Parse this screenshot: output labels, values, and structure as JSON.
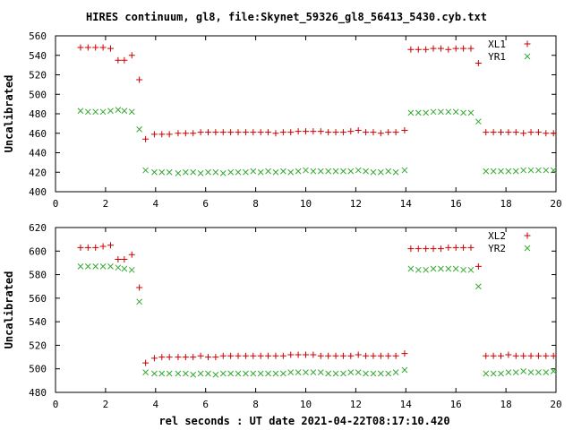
{
  "title": "HIRES continuum, gl8, file:Skynet_59326_gl8_56413_5430.cyb.txt",
  "xlabel": "rel seconds : UT date 2021-04-22T08:17:10.420",
  "colors": {
    "red": "#cc0000",
    "green": "#33aa33",
    "axis": "#000000"
  },
  "chart_data": [
    {
      "type": "scatter",
      "ylabel": "Uncalibrated",
      "xlim": [
        0,
        20
      ],
      "ylim": [
        400,
        560
      ],
      "xticks": [
        0,
        2,
        4,
        6,
        8,
        10,
        12,
        14,
        16,
        18,
        20
      ],
      "yticks": [
        400,
        420,
        440,
        460,
        480,
        500,
        520,
        540,
        560
      ],
      "legend_position": "top-right",
      "series": [
        {
          "name": "XL1",
          "marker": "+",
          "color": "#cc0000",
          "points": [
            [
              1.0,
              548
            ],
            [
              1.3,
              548
            ],
            [
              1.6,
              548
            ],
            [
              1.9,
              548
            ],
            [
              2.2,
              547
            ],
            [
              2.5,
              535
            ],
            [
              2.75,
              535
            ],
            [
              3.05,
              540
            ],
            [
              3.35,
              515
            ],
            [
              3.6,
              454
            ],
            [
              3.95,
              459
            ],
            [
              4.25,
              459
            ],
            [
              4.55,
              459
            ],
            [
              4.9,
              460
            ],
            [
              5.2,
              460
            ],
            [
              5.5,
              460
            ],
            [
              5.8,
              461
            ],
            [
              6.1,
              461
            ],
            [
              6.4,
              461
            ],
            [
              6.7,
              461
            ],
            [
              7.0,
              461
            ],
            [
              7.3,
              461
            ],
            [
              7.6,
              461
            ],
            [
              7.9,
              461
            ],
            [
              8.2,
              461
            ],
            [
              8.5,
              461
            ],
            [
              8.8,
              460
            ],
            [
              9.1,
              461
            ],
            [
              9.4,
              461
            ],
            [
              9.7,
              462
            ],
            [
              10.0,
              462
            ],
            [
              10.3,
              462
            ],
            [
              10.6,
              462
            ],
            [
              10.9,
              461
            ],
            [
              11.2,
              461
            ],
            [
              11.5,
              461
            ],
            [
              11.8,
              462
            ],
            [
              12.1,
              463
            ],
            [
              12.4,
              461
            ],
            [
              12.7,
              461
            ],
            [
              13.0,
              460
            ],
            [
              13.3,
              461
            ],
            [
              13.6,
              461
            ],
            [
              13.95,
              463
            ],
            [
              14.2,
              546
            ],
            [
              14.5,
              546
            ],
            [
              14.8,
              546
            ],
            [
              15.1,
              547
            ],
            [
              15.4,
              547
            ],
            [
              15.7,
              546
            ],
            [
              16.0,
              547
            ],
            [
              16.3,
              547
            ],
            [
              16.6,
              547
            ],
            [
              16.9,
              532
            ],
            [
              17.2,
              461
            ],
            [
              17.5,
              461
            ],
            [
              17.8,
              461
            ],
            [
              18.1,
              461
            ],
            [
              18.4,
              461
            ],
            [
              18.7,
              460
            ],
            [
              19.0,
              461
            ],
            [
              19.3,
              461
            ],
            [
              19.6,
              460
            ],
            [
              19.9,
              460
            ]
          ]
        },
        {
          "name": "YR1",
          "marker": "x",
          "color": "#33aa33",
          "points": [
            [
              1.0,
              483
            ],
            [
              1.3,
              482
            ],
            [
              1.6,
              482
            ],
            [
              1.9,
              482
            ],
            [
              2.2,
              483
            ],
            [
              2.5,
              484
            ],
            [
              2.75,
              483
            ],
            [
              3.05,
              482
            ],
            [
              3.35,
              464
            ],
            [
              3.6,
              422
            ],
            [
              3.95,
              420
            ],
            [
              4.25,
              420
            ],
            [
              4.55,
              420
            ],
            [
              4.9,
              419
            ],
            [
              5.2,
              420
            ],
            [
              5.5,
              420
            ],
            [
              5.8,
              419
            ],
            [
              6.1,
              420
            ],
            [
              6.4,
              420
            ],
            [
              6.7,
              419
            ],
            [
              7.0,
              420
            ],
            [
              7.3,
              420
            ],
            [
              7.6,
              420
            ],
            [
              7.9,
              421
            ],
            [
              8.2,
              420
            ],
            [
              8.5,
              421
            ],
            [
              8.8,
              420
            ],
            [
              9.1,
              421
            ],
            [
              9.4,
              420
            ],
            [
              9.7,
              421
            ],
            [
              10.0,
              422
            ],
            [
              10.3,
              421
            ],
            [
              10.6,
              421
            ],
            [
              10.9,
              421
            ],
            [
              11.2,
              421
            ],
            [
              11.5,
              421
            ],
            [
              11.8,
              421
            ],
            [
              12.1,
              422
            ],
            [
              12.4,
              421
            ],
            [
              12.7,
              420
            ],
            [
              13.0,
              420
            ],
            [
              13.3,
              421
            ],
            [
              13.6,
              420
            ],
            [
              13.95,
              422
            ],
            [
              14.2,
              481
            ],
            [
              14.5,
              481
            ],
            [
              14.8,
              481
            ],
            [
              15.1,
              482
            ],
            [
              15.4,
              482
            ],
            [
              15.7,
              482
            ],
            [
              16.0,
              482
            ],
            [
              16.3,
              481
            ],
            [
              16.6,
              481
            ],
            [
              16.9,
              472
            ],
            [
              17.2,
              421
            ],
            [
              17.5,
              421
            ],
            [
              17.8,
              421
            ],
            [
              18.1,
              421
            ],
            [
              18.4,
              421
            ],
            [
              18.7,
              422
            ],
            [
              19.0,
              422
            ],
            [
              19.3,
              422
            ],
            [
              19.6,
              422
            ],
            [
              19.9,
              422
            ]
          ]
        }
      ]
    },
    {
      "type": "scatter",
      "ylabel": "Uncalibrated",
      "xlim": [
        0,
        20
      ],
      "ylim": [
        480,
        620
      ],
      "xticks": [
        0,
        2,
        4,
        6,
        8,
        10,
        12,
        14,
        16,
        18,
        20
      ],
      "yticks": [
        480,
        500,
        520,
        540,
        560,
        580,
        600,
        620
      ],
      "legend_position": "top-right",
      "series": [
        {
          "name": "XL2",
          "marker": "+",
          "color": "#cc0000",
          "points": [
            [
              1.0,
              603
            ],
            [
              1.3,
              603
            ],
            [
              1.6,
              603
            ],
            [
              1.9,
              604
            ],
            [
              2.2,
              605
            ],
            [
              2.5,
              593
            ],
            [
              2.75,
              593
            ],
            [
              3.05,
              597
            ],
            [
              3.35,
              569
            ],
            [
              3.6,
              505
            ],
            [
              3.95,
              509
            ],
            [
              4.25,
              510
            ],
            [
              4.55,
              510
            ],
            [
              4.9,
              510
            ],
            [
              5.2,
              510
            ],
            [
              5.5,
              510
            ],
            [
              5.8,
              511
            ],
            [
              6.1,
              510
            ],
            [
              6.4,
              510
            ],
            [
              6.7,
              511
            ],
            [
              7.0,
              511
            ],
            [
              7.3,
              511
            ],
            [
              7.6,
              511
            ],
            [
              7.9,
              511
            ],
            [
              8.2,
              511
            ],
            [
              8.5,
              511
            ],
            [
              8.8,
              511
            ],
            [
              9.1,
              511
            ],
            [
              9.4,
              512
            ],
            [
              9.7,
              512
            ],
            [
              10.0,
              512
            ],
            [
              10.3,
              512
            ],
            [
              10.6,
              511
            ],
            [
              10.9,
              511
            ],
            [
              11.2,
              511
            ],
            [
              11.5,
              511
            ],
            [
              11.8,
              511
            ],
            [
              12.1,
              512
            ],
            [
              12.4,
              511
            ],
            [
              12.7,
              511
            ],
            [
              13.0,
              511
            ],
            [
              13.3,
              511
            ],
            [
              13.6,
              511
            ],
            [
              13.95,
              513
            ],
            [
              14.2,
              602
            ],
            [
              14.5,
              602
            ],
            [
              14.8,
              602
            ],
            [
              15.1,
              602
            ],
            [
              15.4,
              602
            ],
            [
              15.7,
              603
            ],
            [
              16.0,
              603
            ],
            [
              16.3,
              603
            ],
            [
              16.6,
              603
            ],
            [
              16.9,
              587
            ],
            [
              17.2,
              511
            ],
            [
              17.5,
              511
            ],
            [
              17.8,
              511
            ],
            [
              18.1,
              512
            ],
            [
              18.4,
              511
            ],
            [
              18.7,
              511
            ],
            [
              19.0,
              511
            ],
            [
              19.3,
              511
            ],
            [
              19.6,
              511
            ],
            [
              19.9,
              511
            ]
          ]
        },
        {
          "name": "YR2",
          "marker": "x",
          "color": "#33aa33",
          "points": [
            [
              1.0,
              587
            ],
            [
              1.3,
              587
            ],
            [
              1.6,
              587
            ],
            [
              1.9,
              587
            ],
            [
              2.2,
              587
            ],
            [
              2.5,
              586
            ],
            [
              2.75,
              585
            ],
            [
              3.05,
              584
            ],
            [
              3.35,
              557
            ],
            [
              3.6,
              497
            ],
            [
              3.95,
              496
            ],
            [
              4.25,
              496
            ],
            [
              4.55,
              496
            ],
            [
              4.9,
              496
            ],
            [
              5.2,
              496
            ],
            [
              5.5,
              495
            ],
            [
              5.8,
              496
            ],
            [
              6.1,
              496
            ],
            [
              6.4,
              495
            ],
            [
              6.7,
              496
            ],
            [
              7.0,
              496
            ],
            [
              7.3,
              496
            ],
            [
              7.6,
              496
            ],
            [
              7.9,
              496
            ],
            [
              8.2,
              496
            ],
            [
              8.5,
              496
            ],
            [
              8.8,
              496
            ],
            [
              9.1,
              496
            ],
            [
              9.4,
              497
            ],
            [
              9.7,
              497
            ],
            [
              10.0,
              497
            ],
            [
              10.3,
              497
            ],
            [
              10.6,
              497
            ],
            [
              10.9,
              496
            ],
            [
              11.2,
              496
            ],
            [
              11.5,
              496
            ],
            [
              11.8,
              497
            ],
            [
              12.1,
              497
            ],
            [
              12.4,
              496
            ],
            [
              12.7,
              496
            ],
            [
              13.0,
              496
            ],
            [
              13.3,
              496
            ],
            [
              13.6,
              497
            ],
            [
              13.95,
              499
            ],
            [
              14.2,
              585
            ],
            [
              14.5,
              584
            ],
            [
              14.8,
              584
            ],
            [
              15.1,
              585
            ],
            [
              15.4,
              585
            ],
            [
              15.7,
              585
            ],
            [
              16.0,
              585
            ],
            [
              16.3,
              584
            ],
            [
              16.6,
              584
            ],
            [
              16.9,
              570
            ],
            [
              17.2,
              496
            ],
            [
              17.5,
              496
            ],
            [
              17.8,
              496
            ],
            [
              18.1,
              497
            ],
            [
              18.4,
              497
            ],
            [
              18.7,
              498
            ],
            [
              19.0,
              497
            ],
            [
              19.3,
              497
            ],
            [
              19.6,
              497
            ],
            [
              19.9,
              498
            ]
          ]
        }
      ]
    }
  ]
}
